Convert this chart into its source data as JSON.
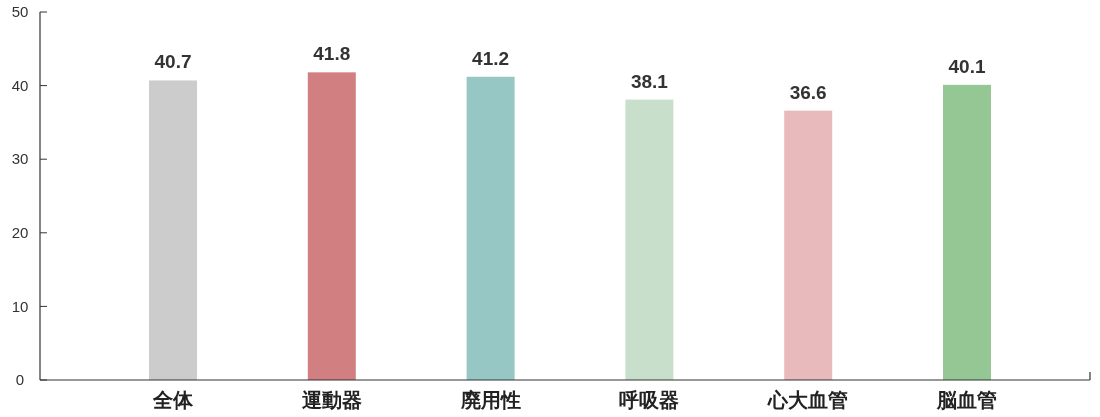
{
  "chart_data": {
    "type": "bar",
    "categories": [
      "全体",
      "運動器",
      "廃用性",
      "呼吸器",
      "心大血管",
      "脳血管"
    ],
    "values": [
      40.7,
      41.8,
      41.2,
      38.1,
      36.6,
      40.1
    ],
    "colors": [
      "#cccccc",
      "#d17f80",
      "#97c7c5",
      "#c8e0cb",
      "#e9babc",
      "#95c795"
    ],
    "ylim": [
      0,
      50
    ],
    "yticks": [
      0,
      10,
      20,
      30,
      40,
      50
    ],
    "grid": false,
    "data_labels": true
  }
}
